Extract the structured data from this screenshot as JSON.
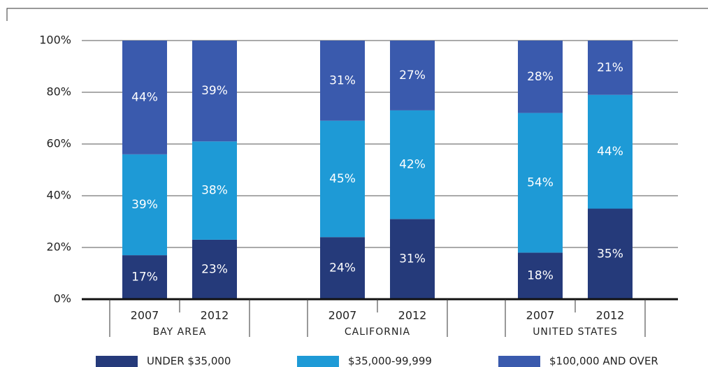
{
  "chart_data": {
    "type": "stacked-bar",
    "categories": [
      "2007",
      "2012",
      "2007",
      "2012",
      "2007",
      "2012"
    ],
    "groups": [
      "BAY AREA",
      "CALIFORNIA",
      "UNITED STATES"
    ],
    "series": [
      {
        "name": "UNDER $35,000",
        "color": "#253a7a",
        "values": [
          17,
          23,
          24,
          31,
          18,
          35
        ],
        "value_labels": [
          "17%",
          "23%",
          "24%",
          "31%",
          "18%",
          "35%"
        ]
      },
      {
        "name": "$35,000-99,999",
        "color": "#1e9ad6",
        "values": [
          39,
          38,
          45,
          42,
          54,
          44
        ],
        "value_labels": [
          "39%",
          "38%",
          "45%",
          "42%",
          "54%",
          "44%"
        ]
      },
      {
        "name": "$100,000 AND OVER",
        "color": "#3a5aad",
        "values": [
          44,
          39,
          31,
          27,
          28,
          21
        ],
        "value_labels": [
          "44%",
          "39%",
          "31%",
          "27%",
          "28%",
          "21%"
        ]
      }
    ],
    "ylim": [
      0,
      100
    ],
    "yticks": [
      {
        "value": 0,
        "label": "0%"
      },
      {
        "value": 20,
        "label": "20%"
      },
      {
        "value": 40,
        "label": "40%"
      },
      {
        "value": 60,
        "label": "60%"
      },
      {
        "value": 80,
        "label": "80%"
      },
      {
        "value": 100,
        "label": "100%"
      }
    ],
    "grid": true,
    "legend": "bottom"
  }
}
